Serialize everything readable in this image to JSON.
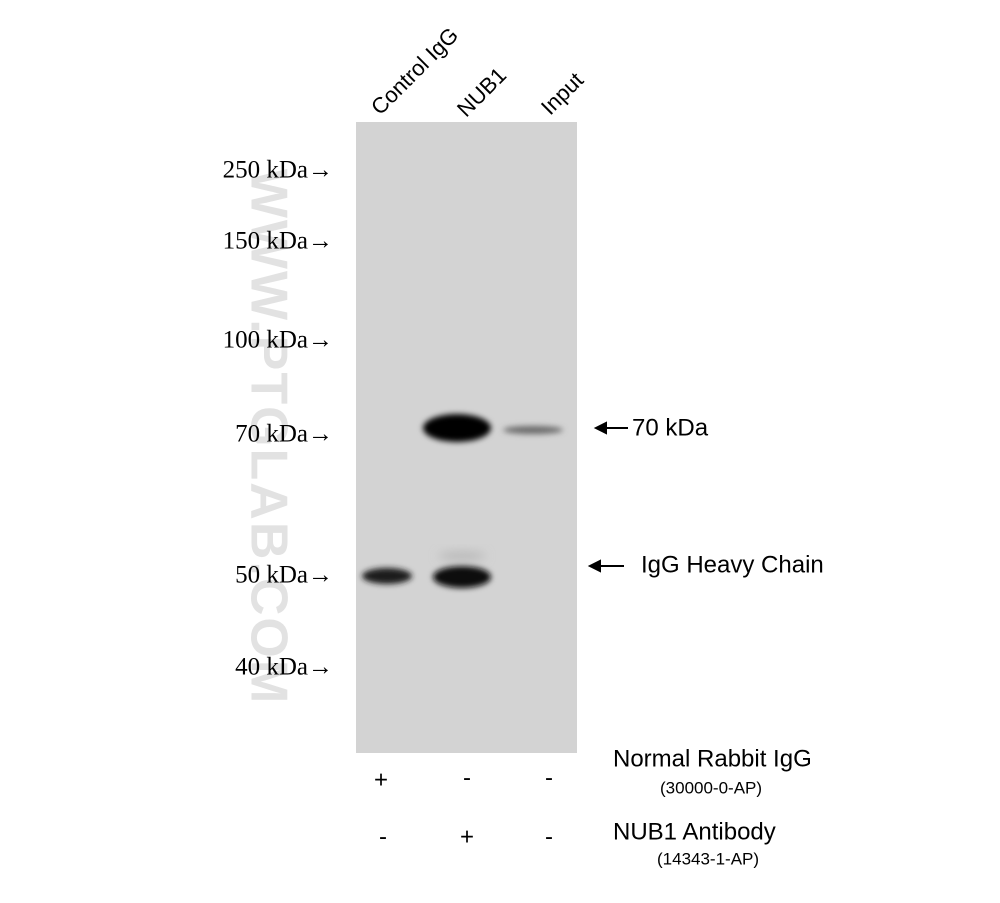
{
  "lanes": [
    "Control IgG",
    "NUB1",
    "Input"
  ],
  "markers": [
    "250 kDa→",
    "150 kDa→",
    "100 kDa→",
    "70 kDa→",
    "50 kDa→",
    "40 kDa→"
  ],
  "annotations": [
    "70 kDa",
    "IgG Heavy Chain"
  ],
  "watermark": "WWW.PTGLAB.COM",
  "treatments": [
    {
      "label": "Normal Rabbit IgG",
      "catalog": "(30000-0-AP)",
      "signs": [
        "+",
        "-",
        "-"
      ]
    },
    {
      "label": "NUB1 Antibody",
      "catalog": "(14343-1-AP)",
      "signs": [
        "-",
        "+",
        "-"
      ]
    }
  ]
}
